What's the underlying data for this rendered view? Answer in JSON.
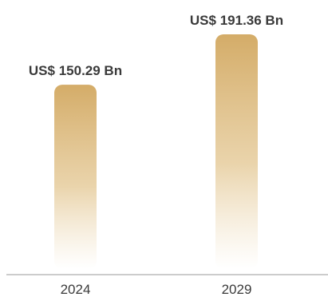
{
  "chart_data": {
    "type": "bar",
    "categories": [
      "2024",
      "2029"
    ],
    "values": [
      150.29,
      191.36
    ],
    "data_labels": [
      "US$ 150.29 Bn",
      "US$ 191.36 Bn"
    ],
    "title": "",
    "xlabel": "",
    "ylabel": "",
    "ylim": [
      0,
      191.36
    ],
    "grid": false,
    "legend": "none",
    "colors": {
      "bar_top": "#d4ac68",
      "bar_bottom": "#ffffff",
      "label": "#3a3a3a",
      "tick": "#3a3a3a",
      "axis": "#999999"
    }
  }
}
